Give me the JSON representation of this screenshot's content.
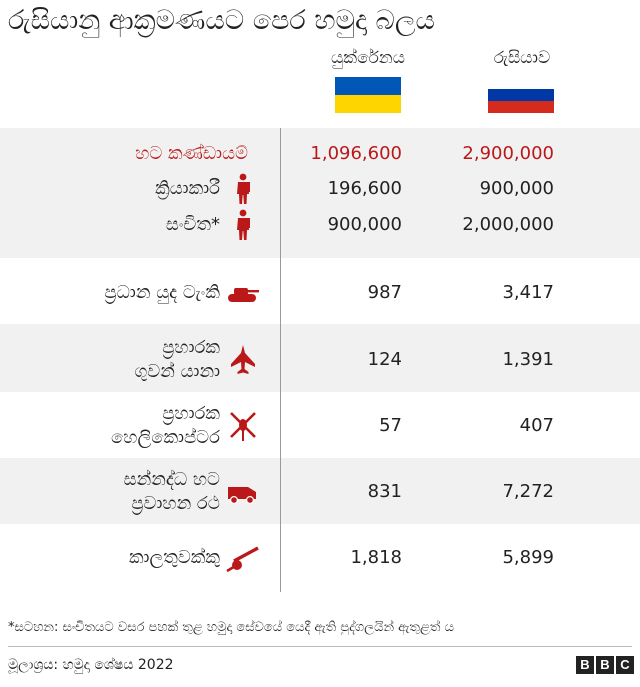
{
  "title": "රුසියානු ආක්‍රමණයට පෙර හමුදා බලය",
  "columns": [
    {
      "label": "යුක්රේනය",
      "flag_colors": [
        "#0057B8",
        "#FFD500"
      ]
    },
    {
      "label": "රුසියාව",
      "flag_colors": [
        "#FFFFFF",
        "#0039A6",
        "#D52B1E"
      ]
    }
  ],
  "colors": {
    "accent": "#bb1919",
    "row_shade": "#f1f1f1",
    "text": "#222222"
  },
  "chart_data": {
    "type": "table",
    "title": "රුසියානු ආක්‍රමණයට පෙර හමුදා බලය",
    "columns": [
      "යුක්රේනය",
      "රුසියාව"
    ],
    "rows": [
      {
        "label": "හට කණ්ඩායම්",
        "icon": "",
        "ukraine": "1,096,600",
        "russia": "2,900,000",
        "highlight": true
      },
      {
        "label": "ක්‍රියාකාරී",
        "icon": "soldier-icon",
        "ukraine": "196,600",
        "russia": "900,000"
      },
      {
        "label": "සංචිත*",
        "icon": "soldier-icon",
        "ukraine": "900,000",
        "russia": "2,000,000"
      },
      {
        "label": "ප්‍රධාන යුද ටැංකි",
        "icon": "tank-icon",
        "ukraine": "987",
        "russia": "3,417"
      },
      {
        "label": "ප්‍රහාරක ගුවන් යානා",
        "label_lines": [
          "ප්‍රහාරක",
          "ගුවන් යානා"
        ],
        "icon": "jet-icon",
        "ukraine": "124",
        "russia": "1,391"
      },
      {
        "label": "ප්‍රහාරක හෙලිකොප්ටර",
        "label_lines": [
          "ප්‍රහාරක",
          "හෙලිකොප්ටර"
        ],
        "icon": "helicopter-icon",
        "ukraine": "57",
        "russia": "407"
      },
      {
        "label": "සන්නද්ධ හට ප්‍රවාහන රථ",
        "label_lines": [
          "සන්නද්ධ හට",
          "ප්‍රවාහන රථ"
        ],
        "icon": "armoured-vehicle-icon",
        "ukraine": "831",
        "russia": "7,272"
      },
      {
        "label": "කාලතුවක්කු",
        "icon": "artillery-icon",
        "ukraine": "1,818",
        "russia": "5,899"
      }
    ]
  },
  "footnote": "*සටහන: සංචිතයට වසර පහක් තුළ හමුදා සේවයේ යෙදී ඇති පුද්ගලයින් ඇතුළත් ය",
  "source": "මූලාශ්‍රය: හමුදා ශේෂය 2022",
  "logo": {
    "letters": [
      "B",
      "B",
      "C"
    ]
  }
}
